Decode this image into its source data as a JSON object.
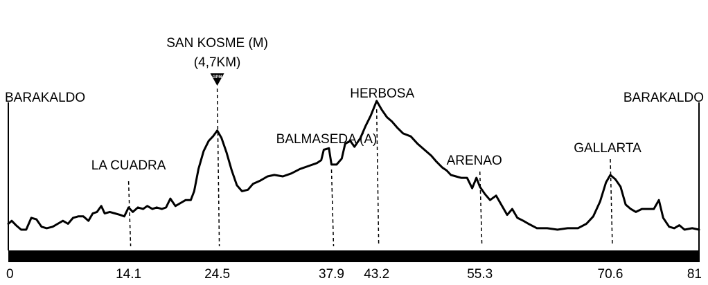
{
  "chart_data": {
    "type": "line",
    "title": "",
    "xlabel": "",
    "ylabel": "",
    "x_range": [
      0,
      81
    ],
    "y_range": [
      0,
      100
    ],
    "x_ticks": [
      "0",
      "14.1",
      "24.5",
      "37.9",
      "43.2",
      "55.3",
      "70.6",
      "81"
    ],
    "x_tick_values": [
      0,
      14.1,
      24.5,
      37.9,
      43.2,
      55.3,
      70.6,
      81
    ],
    "grid": false,
    "series": [
      {
        "values": [
          [
            0.0,
            18
          ],
          [
            0.4,
            20
          ],
          [
            0.9,
            17
          ],
          [
            1.5,
            14
          ],
          [
            2.1,
            14
          ],
          [
            2.7,
            22
          ],
          [
            3.3,
            21
          ],
          [
            3.9,
            16
          ],
          [
            4.5,
            15
          ],
          [
            5.2,
            16
          ],
          [
            5.8,
            18
          ],
          [
            6.4,
            20
          ],
          [
            7.0,
            18
          ],
          [
            7.6,
            22
          ],
          [
            8.2,
            23
          ],
          [
            8.8,
            23
          ],
          [
            9.4,
            20
          ],
          [
            9.9,
            25
          ],
          [
            10.4,
            26
          ],
          [
            10.9,
            30
          ],
          [
            11.3,
            25
          ],
          [
            11.9,
            26
          ],
          [
            12.5,
            25
          ],
          [
            13.1,
            24
          ],
          [
            13.6,
            23
          ],
          [
            14.1,
            29
          ],
          [
            14.6,
            26
          ],
          [
            15.2,
            29
          ],
          [
            15.8,
            28
          ],
          [
            16.3,
            30
          ],
          [
            16.9,
            28
          ],
          [
            17.4,
            29
          ],
          [
            18.0,
            28
          ],
          [
            18.5,
            29
          ],
          [
            19.0,
            35
          ],
          [
            19.6,
            30
          ],
          [
            20.2,
            32
          ],
          [
            20.8,
            34
          ],
          [
            21.4,
            34
          ],
          [
            21.8,
            40
          ],
          [
            22.3,
            55
          ],
          [
            22.9,
            67
          ],
          [
            23.5,
            74
          ],
          [
            24.0,
            77
          ],
          [
            24.5,
            81
          ],
          [
            25.0,
            76
          ],
          [
            25.6,
            66
          ],
          [
            26.2,
            54
          ],
          [
            26.8,
            44
          ],
          [
            27.4,
            40
          ],
          [
            28.1,
            41
          ],
          [
            28.7,
            45
          ],
          [
            29.5,
            47
          ],
          [
            30.4,
            50
          ],
          [
            31.2,
            51
          ],
          [
            32.2,
            50
          ],
          [
            33.2,
            52
          ],
          [
            34.2,
            55
          ],
          [
            35.2,
            57
          ],
          [
            36.2,
            59
          ],
          [
            36.7,
            61
          ],
          [
            37.0,
            68
          ],
          [
            37.6,
            69
          ],
          [
            37.9,
            58
          ],
          [
            38.5,
            58
          ],
          [
            39.1,
            62
          ],
          [
            39.5,
            72
          ],
          [
            40.1,
            74
          ],
          [
            40.6,
            70
          ],
          [
            41.3,
            76
          ],
          [
            41.9,
            84
          ],
          [
            42.5,
            91
          ],
          [
            43.2,
            101
          ],
          [
            43.8,
            95
          ],
          [
            44.4,
            90
          ],
          [
            45.0,
            87
          ],
          [
            45.6,
            83
          ],
          [
            46.3,
            79
          ],
          [
            47.2,
            77
          ],
          [
            48.0,
            72
          ],
          [
            48.8,
            68
          ],
          [
            49.6,
            64
          ],
          [
            50.2,
            60
          ],
          [
            50.9,
            56
          ],
          [
            51.4,
            54
          ],
          [
            51.9,
            51
          ],
          [
            52.5,
            50
          ],
          [
            53.1,
            49
          ],
          [
            53.8,
            49
          ],
          [
            54.4,
            42
          ],
          [
            54.9,
            49
          ],
          [
            55.3,
            43
          ],
          [
            55.9,
            38
          ],
          [
            56.5,
            34
          ],
          [
            57.2,
            37
          ],
          [
            57.9,
            30
          ],
          [
            58.5,
            24
          ],
          [
            59.1,
            28
          ],
          [
            59.7,
            22
          ],
          [
            60.4,
            20
          ],
          [
            61.0,
            18
          ],
          [
            62.0,
            15
          ],
          [
            63.2,
            15
          ],
          [
            64.4,
            14
          ],
          [
            65.6,
            15
          ],
          [
            66.8,
            15
          ],
          [
            67.8,
            18
          ],
          [
            68.6,
            23
          ],
          [
            69.4,
            33
          ],
          [
            70.1,
            46
          ],
          [
            70.6,
            51
          ],
          [
            71.2,
            48
          ],
          [
            71.8,
            43
          ],
          [
            72.4,
            31
          ],
          [
            73.0,
            28
          ],
          [
            73.6,
            26
          ],
          [
            74.3,
            28
          ],
          [
            75.0,
            28
          ],
          [
            75.7,
            28
          ],
          [
            76.3,
            34
          ],
          [
            76.8,
            22
          ],
          [
            77.5,
            16
          ],
          [
            78.1,
            15
          ],
          [
            78.7,
            17
          ],
          [
            79.3,
            14
          ],
          [
            80.2,
            15
          ],
          [
            81.0,
            14
          ]
        ]
      }
    ],
    "annotations": [
      {
        "label": "BARAKALDO",
        "x": 0
      },
      {
        "label": "LA CUADRA",
        "x": 14.1
      },
      {
        "label": "SAN KOSME (M)",
        "sublabel": "(4,7KM)",
        "marker": "GPM",
        "x": 24.5
      },
      {
        "label": "BALMASEDA (A)",
        "x": 37.9
      },
      {
        "label": "HERBOSA",
        "x": 43.2
      },
      {
        "label": "ARENAO",
        "x": 55.3
      },
      {
        "label": "GALLARTA",
        "x": 70.6
      },
      {
        "label": "BARAKALDO",
        "x": 81
      }
    ],
    "colors": {
      "line": "#000000",
      "baseline_bar": "#000000",
      "background": "#ffffff",
      "marker_text": "#ffffff"
    }
  }
}
